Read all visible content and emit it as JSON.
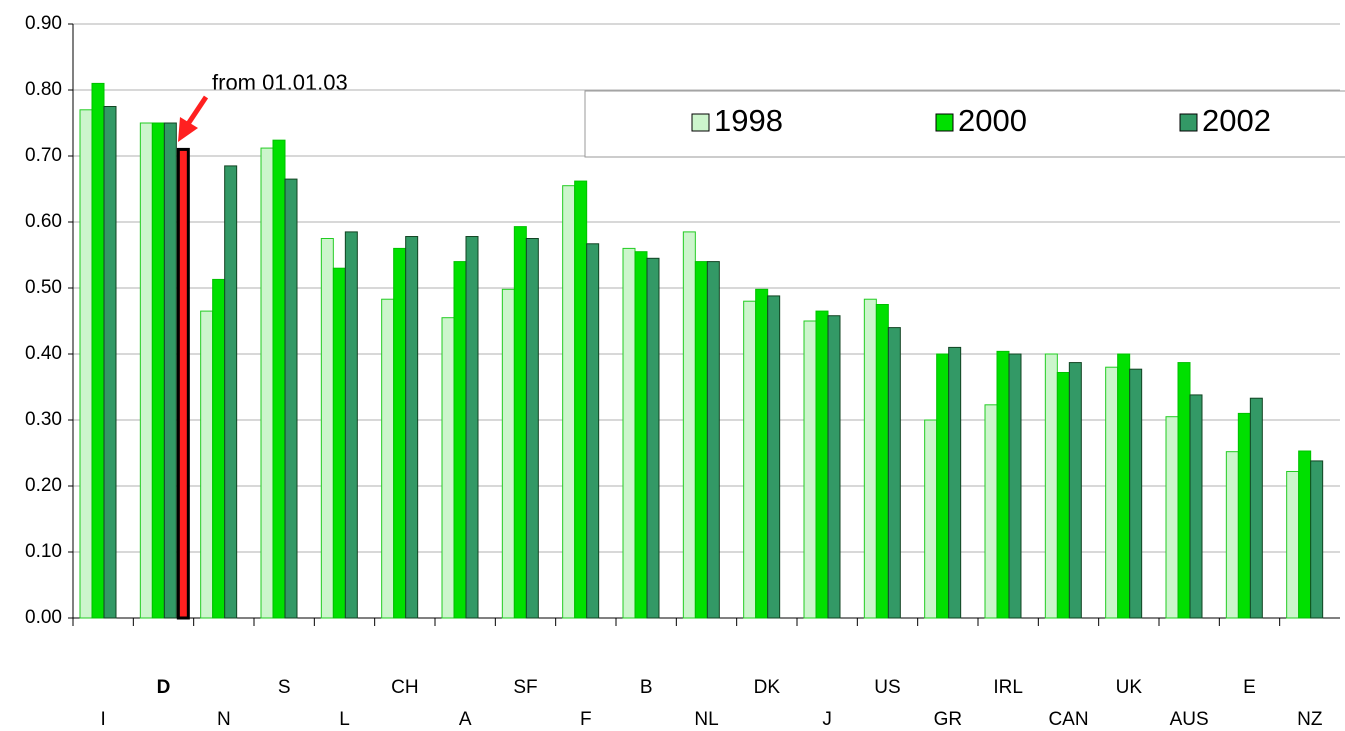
{
  "chart_data": {
    "type": "bar",
    "categories": [
      "I",
      "D",
      "N",
      "S",
      "L",
      "CH",
      "A",
      "SF",
      "F",
      "B",
      "NL",
      "DK",
      "J",
      "US",
      "GR",
      "IRL",
      "CAN",
      "UK",
      "AUS",
      "E",
      "NZ"
    ],
    "series": [
      {
        "name": "1998",
        "color": "#ccf5cc",
        "values": [
          0.77,
          0.75,
          0.465,
          0.712,
          0.575,
          0.483,
          0.455,
          0.498,
          0.655,
          0.56,
          0.585,
          0.48,
          0.45,
          0.483,
          0.3,
          0.323,
          0.4,
          0.38,
          0.305,
          0.252,
          0.222
        ]
      },
      {
        "name": "2000",
        "color": "#00e000",
        "values": [
          0.81,
          0.75,
          0.513,
          0.724,
          0.53,
          0.56,
          0.54,
          0.593,
          0.662,
          0.555,
          0.54,
          0.498,
          0.465,
          0.475,
          0.4,
          0.404,
          0.372,
          0.4,
          0.387,
          0.31,
          0.253
        ]
      },
      {
        "name": "2002",
        "color": "#339966",
        "values": [
          0.775,
          0.75,
          0.685,
          0.665,
          0.585,
          0.578,
          0.578,
          0.575,
          0.567,
          0.545,
          0.54,
          0.488,
          0.458,
          0.44,
          0.41,
          0.4,
          0.387,
          0.377,
          0.338,
          0.333,
          0.238
        ]
      }
    ],
    "annotation": {
      "text": "from 01.01.03",
      "value": 0.71,
      "color": "#ff2020"
    },
    "ylim": [
      0,
      0.9
    ],
    "yticks": [
      {
        "value": 0,
        "label": "0.00"
      },
      {
        "value": 0.1,
        "label": "0.10"
      },
      {
        "value": 0.2,
        "label": "0.20"
      },
      {
        "value": 0.3,
        "label": "0.30"
      },
      {
        "value": 0.4,
        "label": "0.40"
      },
      {
        "value": 0.5,
        "label": "0.50"
      },
      {
        "value": 0.6,
        "label": "0.60"
      },
      {
        "value": 0.7,
        "label": "0.70"
      },
      {
        "value": 0.8,
        "label": "0.80"
      },
      {
        "value": 0.9,
        "label": "0.90"
      }
    ],
    "grid": true
  }
}
